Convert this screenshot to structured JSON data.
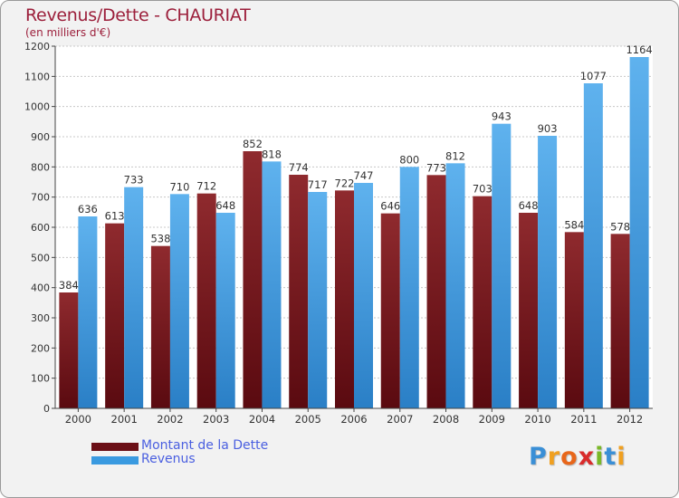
{
  "header": {
    "title": "Revenus/Dette - CHAURIAT",
    "subtitle": "(en milliers d'€)"
  },
  "colors": {
    "title": "#9c1f3b",
    "dette": "#6b0f16",
    "revenus": "#3a9ae0",
    "legend_text": "#4a5fe0",
    "background": "#f2f2f2"
  },
  "legend": {
    "items": [
      {
        "label": "Montant de la Dette",
        "color": "#6b0f16"
      },
      {
        "label": "Revenus",
        "color": "#3a9ae0"
      }
    ]
  },
  "logo": {
    "letters": [
      "P",
      "r",
      "o",
      "x",
      "i",
      "t",
      "i"
    ],
    "colors": [
      "#3a8fd6",
      "#f0a020",
      "#e8661a",
      "#d92b2b",
      "#7ab828",
      "#3a8fd6",
      "#f0a020"
    ]
  },
  "chart_data": {
    "type": "bar",
    "categories": [
      "2000",
      "2001",
      "2002",
      "2003",
      "2004",
      "2005",
      "2006",
      "2007",
      "2008",
      "2009",
      "2010",
      "2011",
      "2012"
    ],
    "series": [
      {
        "name": "Montant de la Dette",
        "values": [
          384,
          613,
          538,
          712,
          852,
          774,
          722,
          646,
          773,
          703,
          648,
          584,
          578
        ]
      },
      {
        "name": "Revenus",
        "values": [
          636,
          733,
          710,
          648,
          818,
          717,
          747,
          800,
          812,
          943,
          903,
          1077,
          1164
        ]
      }
    ],
    "title": "Revenus/Dette - CHAURIAT",
    "ylabel": "(en milliers d'€)",
    "ylim": [
      0,
      1200
    ],
    "yticks": [
      0,
      100,
      200,
      300,
      400,
      500,
      600,
      700,
      800,
      900,
      1000,
      1100,
      1200
    ],
    "grid": true,
    "legend_position": "bottom-left"
  }
}
